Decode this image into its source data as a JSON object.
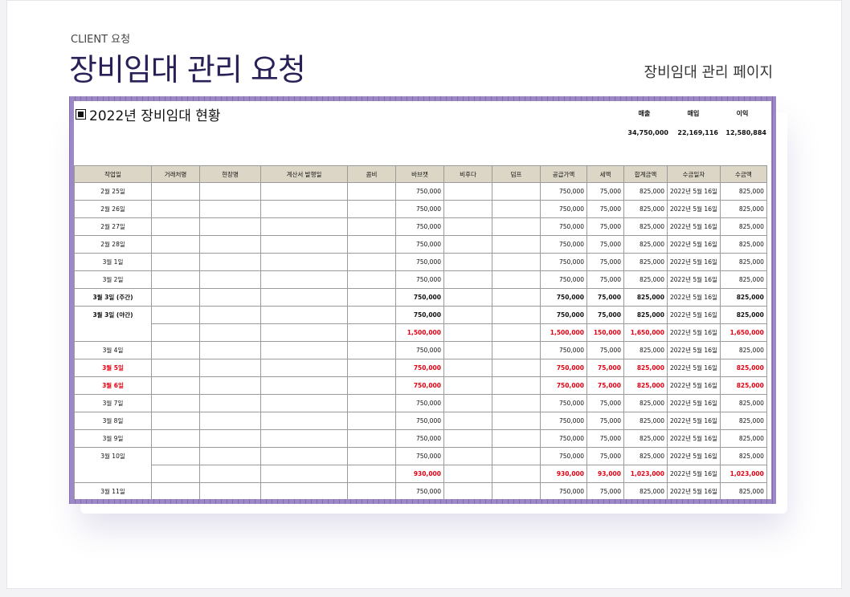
{
  "page": {
    "client_label": "CLIENT 요청",
    "title": "장비임대 관리 요청",
    "subtitle": "장비임대 관리 페이지"
  },
  "sheet": {
    "title": "2022년 장비임대 현황",
    "summary": {
      "labels": [
        "매출",
        "매입",
        "이익"
      ],
      "values": [
        "34,750,000",
        "22,169,116",
        "12,580,884"
      ]
    },
    "columns": [
      "작업일",
      "거래처명",
      "현장명",
      "계산서 발행일",
      "콤비",
      "바브캣",
      "비후다",
      "덤프",
      "공급가액",
      "세액",
      "합계금액",
      "수금일자",
      "수금액"
    ],
    "rows": [
      {
        "date": "2월 25일",
        "bobcat": "750,000",
        "supply": "750,000",
        "tax": "75,000",
        "total": "825,000",
        "paid_date": "2022년 5월 16일",
        "paid": "825,000",
        "style": "normal"
      },
      {
        "date": "2월 26일",
        "bobcat": "750,000",
        "supply": "750,000",
        "tax": "75,000",
        "total": "825,000",
        "paid_date": "2022년 5월 16일",
        "paid": "825,000",
        "style": "normal"
      },
      {
        "date": "2월 27일",
        "bobcat": "750,000",
        "supply": "750,000",
        "tax": "75,000",
        "total": "825,000",
        "paid_date": "2022년 5월 16일",
        "paid": "825,000",
        "style": "normal"
      },
      {
        "date": "2월 28일",
        "bobcat": "750,000",
        "supply": "750,000",
        "tax": "75,000",
        "total": "825,000",
        "paid_date": "2022년 5월 16일",
        "paid": "825,000",
        "style": "normal"
      },
      {
        "date": "3월 1일",
        "bobcat": "750,000",
        "supply": "750,000",
        "tax": "75,000",
        "total": "825,000",
        "paid_date": "2022년 5월 16일",
        "paid": "825,000",
        "style": "normal"
      },
      {
        "date": "3월 2일",
        "bobcat": "750,000",
        "supply": "750,000",
        "tax": "75,000",
        "total": "825,000",
        "paid_date": "2022년 5월 16일",
        "paid": "825,000",
        "style": "normal"
      },
      {
        "date": "3월 3일 (주간)",
        "bobcat": "750,000",
        "supply": "750,000",
        "tax": "75,000",
        "total": "825,000",
        "paid_date": "2022년 5월 16일",
        "paid": "825,000",
        "style": "bold"
      },
      {
        "date": "3월 3일 (야간)",
        "bobcat": "750,000",
        "supply": "750,000",
        "tax": "75,000",
        "total": "825,000",
        "paid_date": "2022년 5월 16일",
        "paid": "825,000",
        "style": "bold"
      },
      {
        "date": "",
        "bobcat": "1,500,000",
        "supply": "1,500,000",
        "tax": "150,000",
        "total": "1,650,000",
        "paid_date": "2022년 5월 16일",
        "paid": "1,650,000",
        "style": "red"
      },
      {
        "date": "3월 4일",
        "bobcat": "750,000",
        "supply": "750,000",
        "tax": "75,000",
        "total": "825,000",
        "paid_date": "2022년 5월 16일",
        "paid": "825,000",
        "style": "normal"
      },
      {
        "date": "3월 5일",
        "bobcat": "750,000",
        "supply": "750,000",
        "tax": "75,000",
        "total": "825,000",
        "paid_date": "2022년 5월 16일",
        "paid": "825,000",
        "style": "red"
      },
      {
        "date": "3월 6일",
        "bobcat": "750,000",
        "supply": "750,000",
        "tax": "75,000",
        "total": "825,000",
        "paid_date": "2022년 5월 16일",
        "paid": "825,000",
        "style": "red"
      },
      {
        "date": "3월 7일",
        "bobcat": "750,000",
        "supply": "750,000",
        "tax": "75,000",
        "total": "825,000",
        "paid_date": "2022년 5월 16일",
        "paid": "825,000",
        "style": "normal"
      },
      {
        "date": "3월 8일",
        "bobcat": "750,000",
        "supply": "750,000",
        "tax": "75,000",
        "total": "825,000",
        "paid_date": "2022년 5월 16일",
        "paid": "825,000",
        "style": "normal"
      },
      {
        "date": "3월 9일",
        "bobcat": "750,000",
        "supply": "750,000",
        "tax": "75,000",
        "total": "825,000",
        "paid_date": "2022년 5월 16일",
        "paid": "825,000",
        "style": "normal"
      },
      {
        "date": "3월 10일",
        "bobcat": "750,000",
        "supply": "750,000",
        "tax": "75,000",
        "total": "825,000",
        "paid_date": "2022년 5월 16일",
        "paid": "825,000",
        "style": "normal"
      },
      {
        "date": "",
        "bobcat": "930,000",
        "supply": "930,000",
        "tax": "93,000",
        "total": "1,023,000",
        "paid_date": "2022년 5월 16일",
        "paid": "1,023,000",
        "style": "red"
      },
      {
        "date": "3월 11일",
        "bobcat": "750,000",
        "supply": "750,000",
        "tax": "75,000",
        "total": "825,000",
        "paid_date": "2022년 5월 16일",
        "paid": "825,000",
        "style": "normal"
      }
    ]
  }
}
